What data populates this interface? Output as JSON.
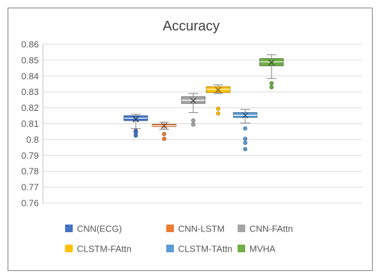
{
  "chart_data": {
    "type": "boxplot",
    "title": "Accuracy",
    "xlabel": "",
    "ylabel": "",
    "ylim": [
      0.76,
      0.86
    ],
    "ytick_step": 0.01,
    "ytick_labels": [
      "0.76",
      "0.77",
      "0.78",
      "0.79",
      "0.8",
      "0.81",
      "0.82",
      "0.83",
      "0.84",
      "0.85",
      "0.86"
    ],
    "grid": true,
    "legend_position": "bottom",
    "series": [
      {
        "name": "CNN(ECG)",
        "color": "#4472C4",
        "whisker_low": 0.807,
        "q1": 0.812,
        "median": 0.8135,
        "q3": 0.815,
        "whisker_high": 0.816,
        "mean": 0.8128,
        "outliers": [
          0.8055,
          0.8045,
          0.8025
        ]
      },
      {
        "name": "CNN-LSTM",
        "color": "#ED7D31",
        "whisker_low": 0.8065,
        "q1": 0.8082,
        "median": 0.8087,
        "q3": 0.8096,
        "whisker_high": 0.811,
        "mean": 0.8087,
        "outliers": [
          0.8035,
          0.8005
        ]
      },
      {
        "name": "CNN-FAttn",
        "color": "#A5A5A5",
        "whisker_low": 0.817,
        "q1": 0.8228,
        "median": 0.8248,
        "q3": 0.827,
        "whisker_high": 0.829,
        "mean": 0.8245,
        "outliers": [
          0.812,
          0.8095
        ]
      },
      {
        "name": "CLSTM-FAttn",
        "color": "#FFC000",
        "whisker_low": 0.829,
        "q1": 0.8297,
        "median": 0.8317,
        "q3": 0.8333,
        "whisker_high": 0.8345,
        "mean": 0.8312,
        "outliers": [
          0.8195,
          0.8165
        ]
      },
      {
        "name": "CLSTM-TAttn",
        "color": "#5B9BD5",
        "whisker_low": 0.8105,
        "q1": 0.814,
        "median": 0.8153,
        "q3": 0.817,
        "whisker_high": 0.819,
        "mean": 0.8153,
        "outliers": [
          0.807,
          0.8005,
          0.798,
          0.794
        ]
      },
      {
        "name": "MVHA",
        "color": "#70AD47",
        "whisker_low": 0.8385,
        "q1": 0.8465,
        "median": 0.849,
        "q3": 0.851,
        "whisker_high": 0.8535,
        "mean": 0.8485,
        "outliers": [
          0.8355,
          0.833
        ]
      }
    ]
  }
}
